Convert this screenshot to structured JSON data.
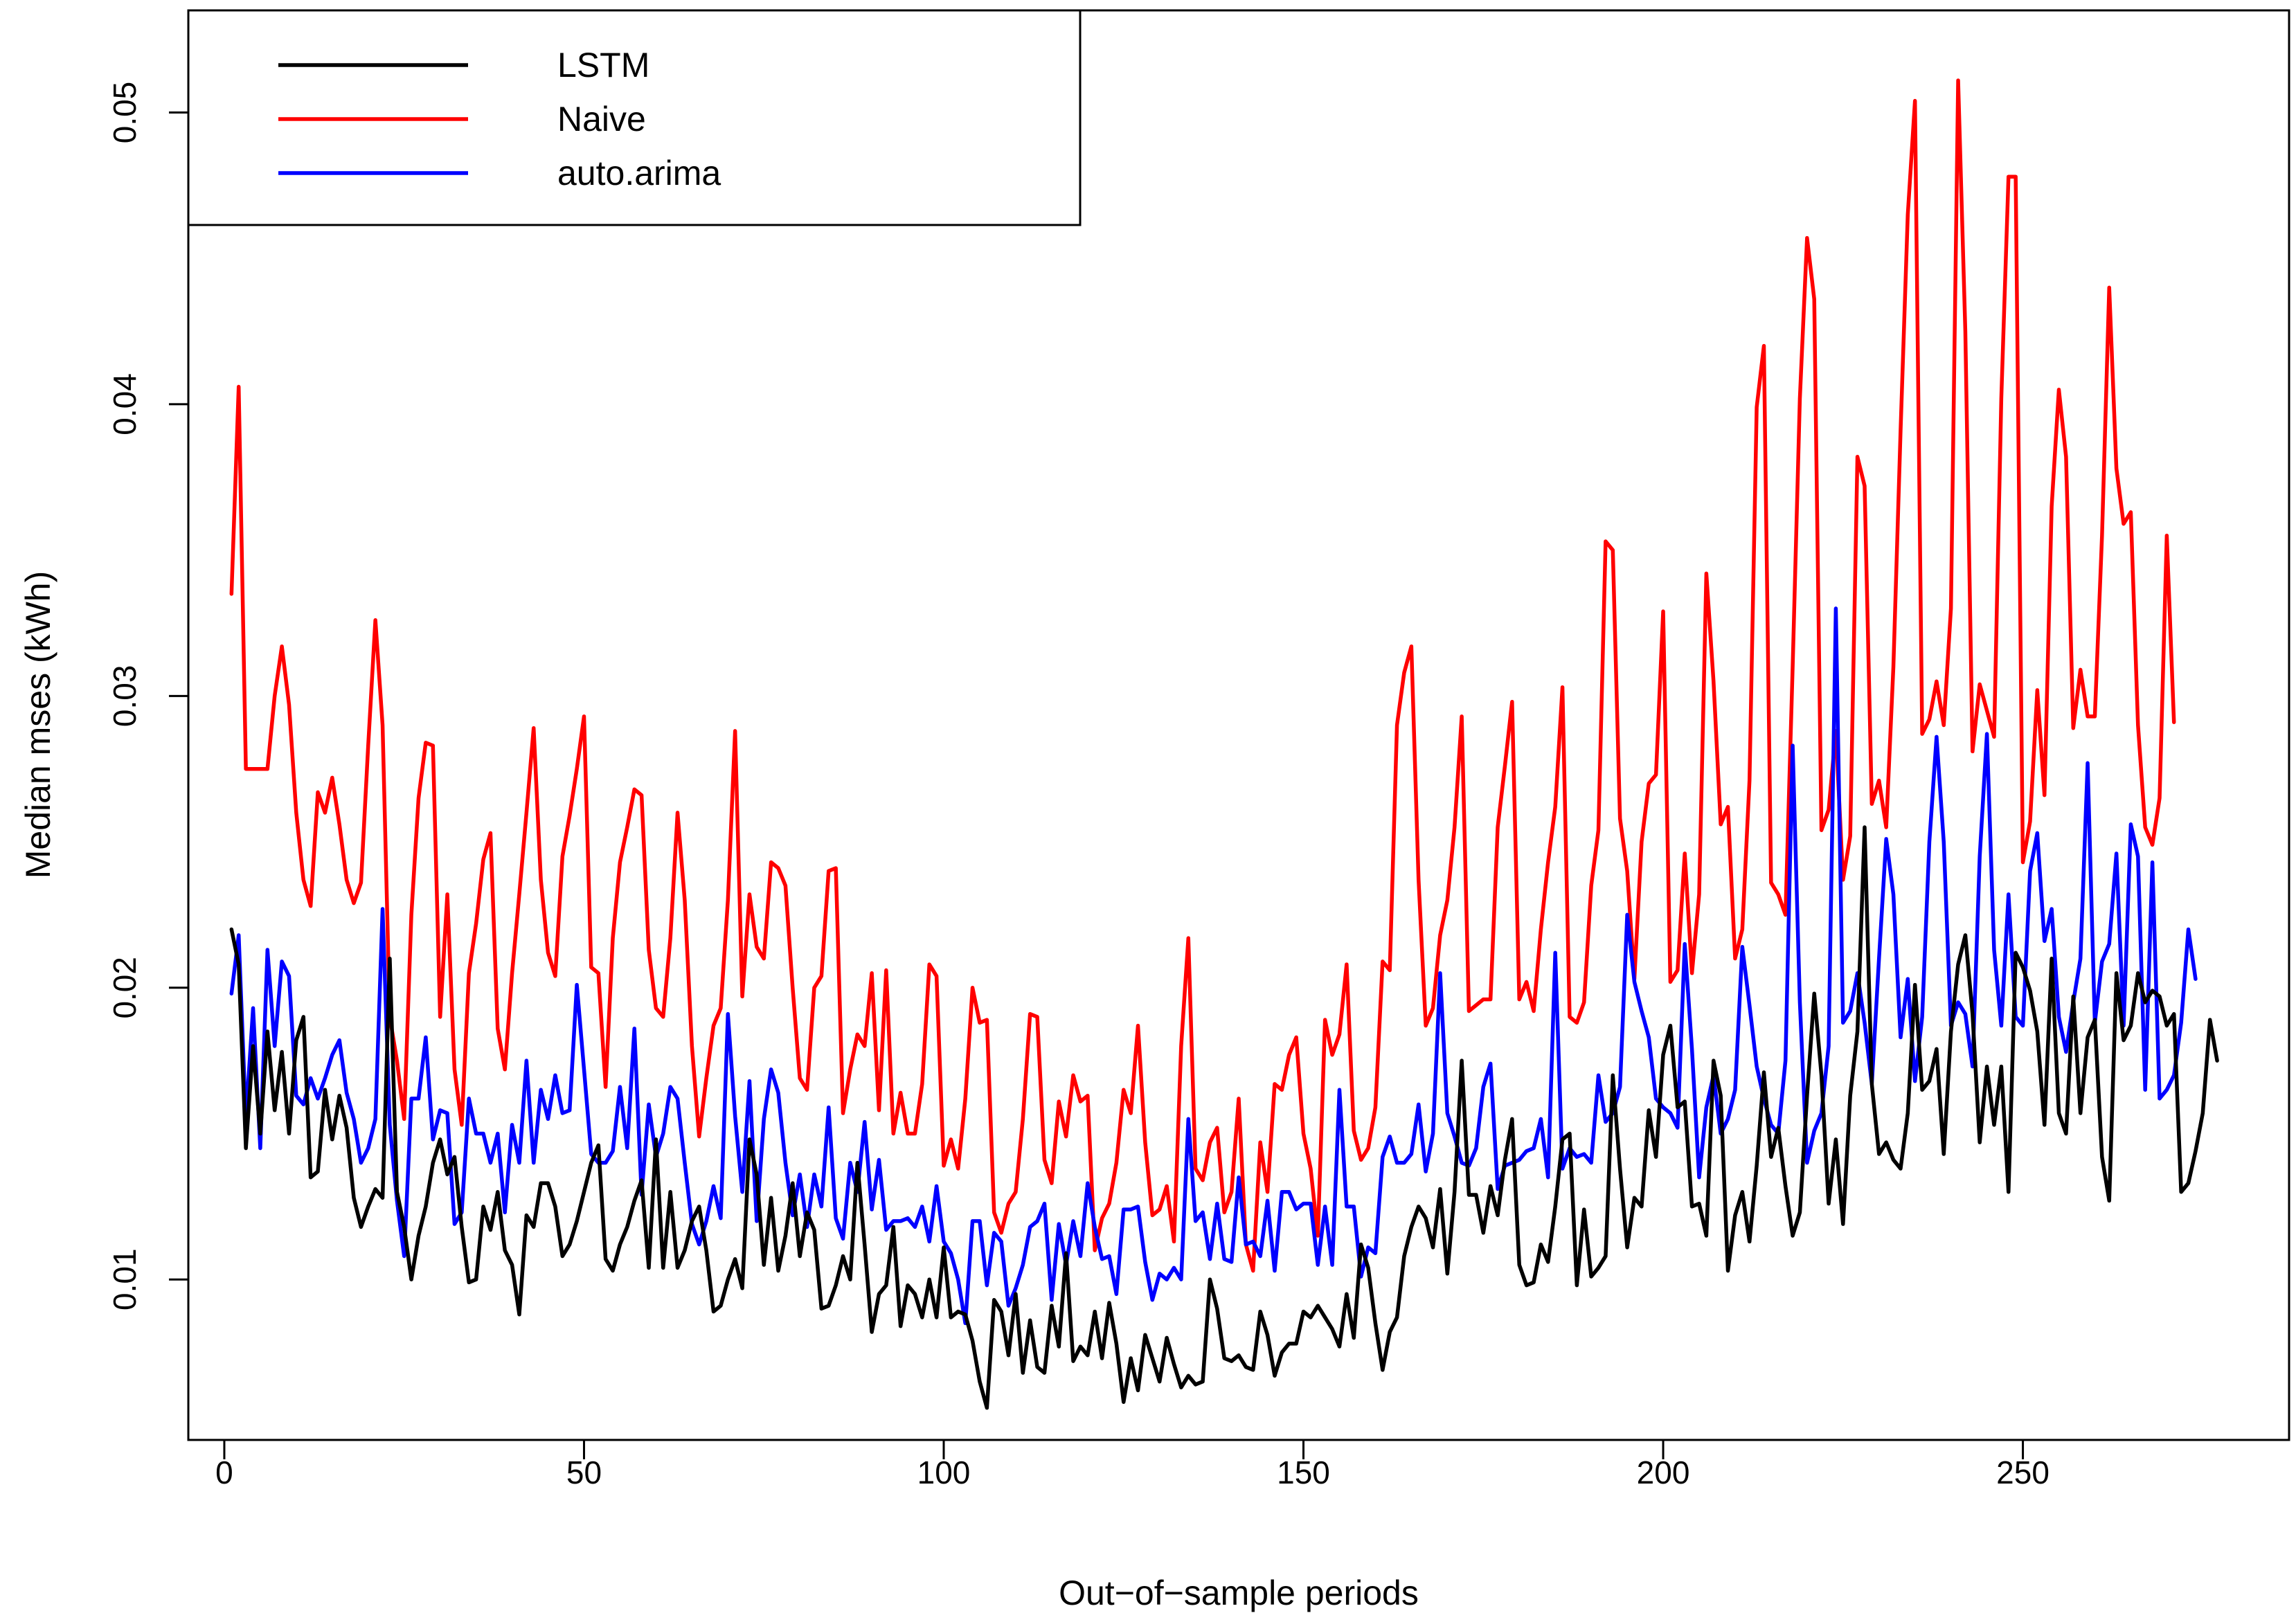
{
  "chart_data": {
    "type": "line",
    "title": "",
    "xlabel": "Out−of−sample periods",
    "ylabel": "Median mses (kWh)",
    "xlim": [
      -5,
      287
    ],
    "ylim": [
      0.0045,
      0.0535
    ],
    "xticks": [
      0,
      50,
      100,
      150,
      200,
      250
    ],
    "yticks": [
      0.01,
      0.02,
      0.03,
      0.04,
      0.05
    ],
    "xtick_labels": [
      "0",
      "50",
      "100",
      "150",
      "200",
      "250"
    ],
    "ytick_labels": [
      "0.01",
      "0.02",
      "0.03",
      "0.04",
      "0.05"
    ],
    "legend_position": "top-left",
    "grid": false,
    "n_points": 275,
    "x_start": 1,
    "series": [
      {
        "name": "LSTM",
        "color": "#000000",
        "values": [
          0.022,
          0.0208,
          0.0145,
          0.018,
          0.015,
          0.0185,
          0.0158,
          0.0178,
          0.015,
          0.0182,
          0.019,
          0.0135,
          0.0137,
          0.0165,
          0.0148,
          0.0163,
          0.0152,
          0.0128,
          0.0118,
          0.0125,
          0.0131,
          0.0128,
          0.021,
          0.013,
          0.0118,
          0.01,
          0.0115,
          0.0125,
          0.014,
          0.0148,
          0.0136,
          0.0142,
          0.0118,
          0.0099,
          0.01,
          0.0125,
          0.0117,
          0.013,
          0.011,
          0.0105,
          0.0088,
          0.0122,
          0.0118,
          0.0133,
          0.0133,
          0.0125,
          0.0108,
          0.0112,
          0.012,
          0.013,
          0.014,
          0.0146,
          0.0107,
          0.0103,
          0.0112,
          0.0118,
          0.0127,
          0.0134,
          0.0104,
          0.0148,
          0.0104,
          0.013,
          0.0104,
          0.011,
          0.012,
          0.0125,
          0.011,
          0.0089,
          0.0091,
          0.01,
          0.0107,
          0.0097,
          0.0148,
          0.0136,
          0.0105,
          0.0128,
          0.0103,
          0.0115,
          0.0133,
          0.0108,
          0.0123,
          0.0117,
          0.009,
          0.0091,
          0.0098,
          0.0108,
          0.01,
          0.014,
          0.0112,
          0.0082,
          0.0095,
          0.0098,
          0.0118,
          0.0084,
          0.0098,
          0.0095,
          0.0087,
          0.01,
          0.0087,
          0.0111,
          0.0087,
          0.0089,
          0.0088,
          0.0079,
          0.0065,
          0.0056,
          0.0093,
          0.0089,
          0.0074,
          0.0095,
          0.0068,
          0.0086,
          0.007,
          0.0068,
          0.0091,
          0.0077,
          0.0109,
          0.0072,
          0.0077,
          0.0074,
          0.0089,
          0.0073,
          0.0092,
          0.0078,
          0.0058,
          0.0073,
          0.0062,
          0.0081,
          0.0073,
          0.0065,
          0.008,
          0.0071,
          0.0063,
          0.0067,
          0.0064,
          0.0065,
          0.01,
          0.009,
          0.0073,
          0.0072,
          0.0074,
          0.007,
          0.0069,
          0.0089,
          0.0081,
          0.0067,
          0.0075,
          0.0078,
          0.0078,
          0.0089,
          0.0087,
          0.0091,
          0.0087,
          0.0083,
          0.0077,
          0.0095,
          0.008,
          0.0112,
          0.0104,
          0.0085,
          0.0069,
          0.0082,
          0.0087,
          0.0108,
          0.0118,
          0.0125,
          0.0121,
          0.0111,
          0.0131,
          0.0102,
          0.013,
          0.0175,
          0.0129,
          0.0129,
          0.0116,
          0.0132,
          0.0122,
          0.0141,
          0.0155,
          0.0105,
          0.0098,
          0.0099,
          0.0112,
          0.0106,
          0.0125,
          0.0148,
          0.015,
          0.0098,
          0.0124,
          0.0101,
          0.0104,
          0.0108,
          0.017,
          0.0138,
          0.0111,
          0.0128,
          0.0125,
          0.0158,
          0.0142,
          0.0177,
          0.0187,
          0.0159,
          0.0161,
          0.0125,
          0.0126,
          0.0115,
          0.0175,
          0.0163,
          0.0103,
          0.0122,
          0.013,
          0.0113,
          0.0139,
          0.0171,
          0.0142,
          0.0152,
          0.0132,
          0.0115,
          0.0123,
          0.0163,
          0.0198,
          0.017,
          0.0126,
          0.0148,
          0.0119,
          0.0163,
          0.0185,
          0.0255,
          0.0167,
          0.0143,
          0.0147,
          0.0141,
          0.0138,
          0.0157,
          0.0201,
          0.0165,
          0.0168,
          0.0179,
          0.0143,
          0.0185,
          0.0208,
          0.0218,
          0.0191,
          0.0147,
          0.0173,
          0.0153,
          0.0173,
          0.013,
          0.0212,
          0.0207,
          0.0199,
          0.0185,
          0.0153,
          0.021,
          0.0157,
          0.015,
          0.0197,
          0.0157,
          0.0183,
          0.0189,
          0.0142,
          0.0127,
          0.0205,
          0.0182,
          0.0187,
          0.0205,
          0.0195,
          0.0199,
          0.0197,
          0.0187,
          0.0191,
          0.013,
          0.0133,
          0.0144,
          0.0157,
          0.0189,
          0.0175
        ]
      },
      {
        "name": "Naive",
        "color": "#ff0000",
        "values": [
          0.0335,
          0.0406,
          0.0275,
          0.0275,
          0.0275,
          0.0275,
          0.03,
          0.0317,
          0.0297,
          0.026,
          0.0237,
          0.0228,
          0.0267,
          0.026,
          0.0272,
          0.0256,
          0.0237,
          0.0229,
          0.0236,
          0.0283,
          0.0326,
          0.029,
          0.019,
          0.0175,
          0.0155,
          0.0225,
          0.0265,
          0.0284,
          0.0283,
          0.019,
          0.0232,
          0.0172,
          0.0153,
          0.0205,
          0.0222,
          0.0244,
          0.0253,
          0.0186,
          0.0172,
          0.0205,
          0.0232,
          0.026,
          0.0289,
          0.0237,
          0.0212,
          0.0204,
          0.0245,
          0.0259,
          0.0275,
          0.0293,
          0.0207,
          0.0205,
          0.0166,
          0.0217,
          0.0243,
          0.0255,
          0.0268,
          0.0266,
          0.0213,
          0.0193,
          0.019,
          0.0217,
          0.026,
          0.023,
          0.018,
          0.0149,
          0.0169,
          0.0187,
          0.0193,
          0.023,
          0.0288,
          0.0197,
          0.0232,
          0.0214,
          0.021,
          0.0243,
          0.0241,
          0.0235,
          0.02,
          0.0169,
          0.0165,
          0.02,
          0.0204,
          0.024,
          0.0241,
          0.0157,
          0.0172,
          0.0184,
          0.018,
          0.0205,
          0.0158,
          0.0206,
          0.015,
          0.0164,
          0.015,
          0.015,
          0.0167,
          0.0208,
          0.0204,
          0.0139,
          0.0148,
          0.0138,
          0.0162,
          0.02,
          0.0188,
          0.0189,
          0.0123,
          0.0116,
          0.0126,
          0.013,
          0.0155,
          0.0191,
          0.019,
          0.0141,
          0.0133,
          0.0161,
          0.0149,
          0.017,
          0.0161,
          0.0163,
          0.011,
          0.0121,
          0.0126,
          0.014,
          0.0165,
          0.0157,
          0.0187,
          0.0147,
          0.0122,
          0.0124,
          0.0132,
          0.0113,
          0.018,
          0.0217,
          0.0138,
          0.0134,
          0.0147,
          0.0152,
          0.0123,
          0.013,
          0.0162,
          0.0112,
          0.0103,
          0.0147,
          0.013,
          0.0167,
          0.0165,
          0.0177,
          0.0183,
          0.015,
          0.0138,
          0.0115,
          0.0189,
          0.0177,
          0.0184,
          0.0208,
          0.0151,
          0.0141,
          0.0145,
          0.0159,
          0.0209,
          0.0206,
          0.029,
          0.0308,
          0.0317,
          0.0237,
          0.0187,
          0.0193,
          0.0218,
          0.023,
          0.0255,
          0.0293,
          0.0192,
          0.0194,
          0.0196,
          0.0196,
          0.0255,
          0.0276,
          0.0298,
          0.0196,
          0.0202,
          0.0192,
          0.022,
          0.0243,
          0.0262,
          0.0303,
          0.019,
          0.0188,
          0.0195,
          0.0235,
          0.0254,
          0.0353,
          0.035,
          0.0258,
          0.024,
          0.0203,
          0.025,
          0.027,
          0.0273,
          0.0329,
          0.0202,
          0.0206,
          0.0246,
          0.0205,
          0.0232,
          0.0342,
          0.0305,
          0.0256,
          0.0262,
          0.021,
          0.022,
          0.0271,
          0.0399,
          0.042,
          0.0236,
          0.0232,
          0.0225,
          0.031,
          0.0402,
          0.0457,
          0.0436,
          0.0254,
          0.0261,
          0.0288,
          0.0237,
          0.0252,
          0.0382,
          0.0372,
          0.0263,
          0.0271,
          0.0255,
          0.031,
          0.0391,
          0.0465,
          0.0504,
          0.0287,
          0.0292,
          0.0305,
          0.029,
          0.033,
          0.0511,
          0.0425,
          0.0281,
          0.0304,
          0.0295,
          0.0286,
          0.0402,
          0.0478,
          0.0478,
          0.0243,
          0.0257,
          0.0302,
          0.0266,
          0.0365,
          0.0405,
          0.0382,
          0.0289,
          0.0309,
          0.0293,
          0.0293,
          0.0355,
          0.044,
          0.0378,
          0.0359,
          0.0363,
          0.029,
          0.0255,
          0.0249,
          0.0265,
          0.0355,
          0.0291
        ]
      },
      {
        "name": "auto.arima",
        "color": "#0000ff",
        "values": [
          0.0198,
          0.0218,
          0.0155,
          0.0193,
          0.0145,
          0.0213,
          0.018,
          0.0209,
          0.0204,
          0.0163,
          0.016,
          0.0169,
          0.0162,
          0.0169,
          0.0177,
          0.0182,
          0.0164,
          0.0155,
          0.014,
          0.0145,
          0.0155,
          0.0227,
          0.0153,
          0.0127,
          0.0108,
          0.0162,
          0.0162,
          0.0183,
          0.0148,
          0.0158,
          0.0157,
          0.0119,
          0.0123,
          0.0162,
          0.015,
          0.015,
          0.014,
          0.015,
          0.0123,
          0.0153,
          0.014,
          0.0175,
          0.014,
          0.0165,
          0.0155,
          0.017,
          0.0157,
          0.0158,
          0.0201,
          0.0172,
          0.0143,
          0.014,
          0.014,
          0.0144,
          0.0166,
          0.0145,
          0.0186,
          0.0129,
          0.016,
          0.0142,
          0.015,
          0.0166,
          0.0162,
          0.014,
          0.0119,
          0.0112,
          0.012,
          0.0132,
          0.0121,
          0.0191,
          0.0156,
          0.013,
          0.0168,
          0.012,
          0.0155,
          0.0172,
          0.0164,
          0.014,
          0.0122,
          0.0136,
          0.0118,
          0.0136,
          0.0125,
          0.0159,
          0.0121,
          0.0114,
          0.014,
          0.013,
          0.0154,
          0.0124,
          0.0141,
          0.0117,
          0.012,
          0.012,
          0.0121,
          0.0118,
          0.0125,
          0.0113,
          0.0132,
          0.0113,
          0.0109,
          0.01,
          0.0085,
          0.012,
          0.012,
          0.0098,
          0.0116,
          0.0113,
          0.0091,
          0.0097,
          0.0105,
          0.0118,
          0.012,
          0.0126,
          0.0093,
          0.0119,
          0.0105,
          0.012,
          0.0108,
          0.0133,
          0.0118,
          0.0107,
          0.0108,
          0.0095,
          0.0124,
          0.0124,
          0.0125,
          0.0106,
          0.0093,
          0.0102,
          0.01,
          0.0104,
          0.01,
          0.0155,
          0.012,
          0.0123,
          0.0107,
          0.0126,
          0.0107,
          0.0106,
          0.0135,
          0.0112,
          0.0113,
          0.0108,
          0.0127,
          0.0103,
          0.013,
          0.013,
          0.0124,
          0.0126,
          0.0126,
          0.0105,
          0.0125,
          0.0105,
          0.0165,
          0.0125,
          0.0125,
          0.0101,
          0.0111,
          0.0109,
          0.0142,
          0.0149,
          0.014,
          0.014,
          0.0143,
          0.016,
          0.0137,
          0.015,
          0.0205,
          0.0157,
          0.0149,
          0.014,
          0.0139,
          0.0145,
          0.0166,
          0.0174,
          0.0131,
          0.0139,
          0.014,
          0.0141,
          0.0144,
          0.0145,
          0.0155,
          0.0135,
          0.0212,
          0.0138,
          0.0145,
          0.0142,
          0.0143,
          0.014,
          0.017,
          0.0154,
          0.0157,
          0.0166,
          0.0225,
          0.0202,
          0.0192,
          0.0183,
          0.0162,
          0.0159,
          0.0157,
          0.0152,
          0.0215,
          0.0179,
          0.0135,
          0.0159,
          0.017,
          0.015,
          0.0155,
          0.0165,
          0.0214,
          0.0194,
          0.0173,
          0.0162,
          0.0153,
          0.015,
          0.0175,
          0.0283,
          0.0195,
          0.014,
          0.0151,
          0.0157,
          0.018,
          0.033,
          0.0188,
          0.0192,
          0.0205,
          0.0188,
          0.0167,
          0.021,
          0.0251,
          0.0232,
          0.0183,
          0.0203,
          0.0168,
          0.019,
          0.025,
          0.0286,
          0.025,
          0.0187,
          0.0195,
          0.0191,
          0.0173,
          0.0245,
          0.0287,
          0.0213,
          0.0187,
          0.0232,
          0.019,
          0.0187,
          0.024,
          0.0253,
          0.0216,
          0.0227,
          0.019,
          0.0178,
          0.0195,
          0.021,
          0.0277,
          0.0188,
          0.0209,
          0.0215,
          0.0246,
          0.0187,
          0.0256,
          0.0245,
          0.0165,
          0.0243,
          0.0162,
          0.0165,
          0.017,
          0.0188,
          0.022,
          0.0203
        ]
      }
    ]
  }
}
